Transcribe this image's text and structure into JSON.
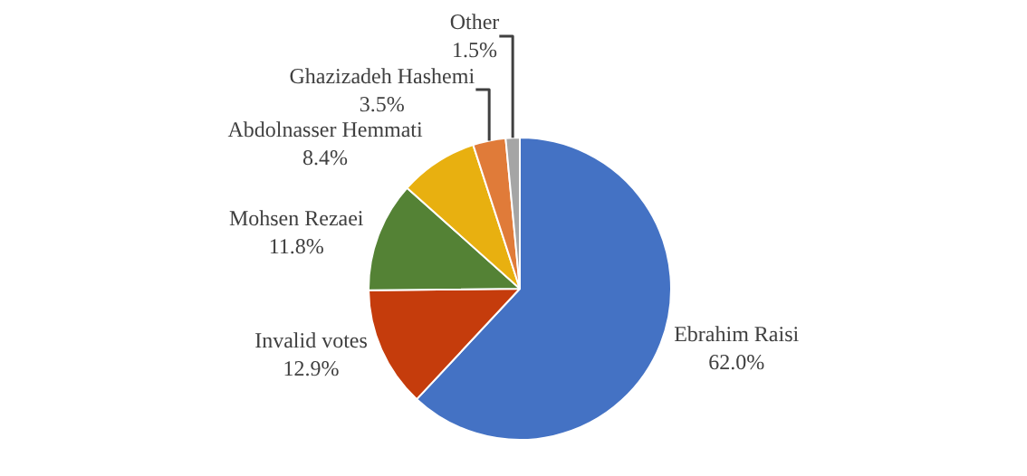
{
  "chart_data": {
    "type": "pie",
    "categories": [
      "Ebrahim Raisi",
      "Invalid votes",
      "Mohsen Rezaei",
      "Abdolnasser Hemmati",
      "Ghazizadeh Hashemi",
      "Other"
    ],
    "values": [
      62.0,
      12.9,
      11.8,
      8.4,
      3.5,
      1.5
    ],
    "value_labels": [
      "62.0%",
      "12.9%",
      "11.8%",
      "8.4%",
      "3.5%",
      "1.5%"
    ],
    "colors": [
      "#4472c4",
      "#c53c0c",
      "#548235",
      "#e8b010",
      "#e07b39",
      "#a5a5a5"
    ],
    "legend": false
  }
}
